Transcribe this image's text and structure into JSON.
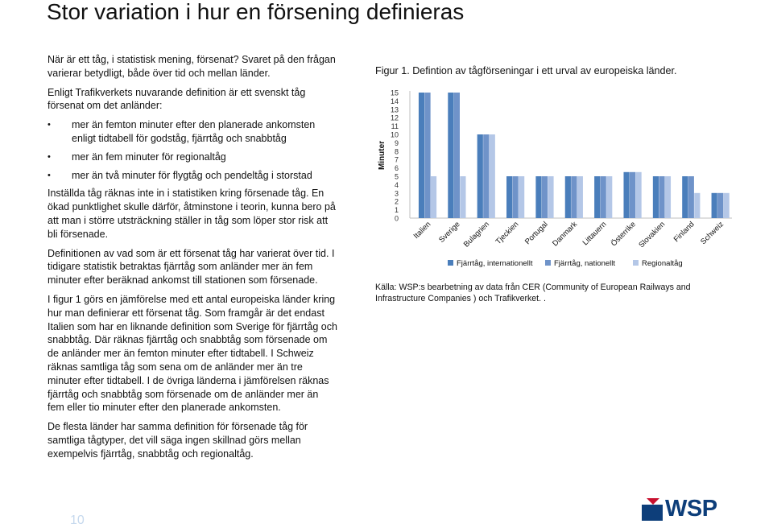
{
  "page": {
    "title": "Stor variation i hur en försening definieras",
    "page_number": "10"
  },
  "text": {
    "p1": "När är ett tåg, i statistisk mening, försenat? Svaret på den frågan varierar betydligt, både över tid och mellan länder.",
    "p2": "Enligt Trafikverkets nuvarande definition är ett svenskt tåg försenat om det anländer:",
    "bullets": [
      "mer än femton minuter efter den planerade ankomsten enligt tidtabell för godståg, fjärrtåg och snabbtåg",
      "mer än fem minuter för regionaltåg",
      "mer än två minuter för flygtåg och pendeltåg i storstad"
    ],
    "p3": "Inställda tåg räknas inte in i statistiken kring försenade tåg. En ökad punktlighet skulle därför, åtminstone i teorin, kunna bero på att man i större utsträckning ställer in tåg som löper stor risk att bli försenade.",
    "p4": "Definitionen av vad som är ett försenat tåg har varierat över tid. I tidigare statistik betraktas fjärrtåg som anländer mer än fem minuter efter beräknad ankomst till stationen som försenade.",
    "p5": "I figur 1 görs en jämförelse med ett antal europeiska länder kring hur man definierar ett försenat tåg. Som framgår är det endast Italien som har en liknande definition som Sverige för fjärrtåg och snabbtåg. Där räknas fjärrtåg och snabbtåg som försenade om de anländer mer än femton minuter efter tidtabell. I Schweiz räknas samtliga tåg som sena om de anländer mer än tre minuter efter tidtabell. I de övriga länderna i jämförelsen räknas fjärrtåg och snabbtåg som försenade om de anländer mer än fem eller tio minuter efter den planerade ankomsten.",
    "p6": "De flesta länder har samma definition för försenade tåg för samtliga tågtyper, det vill säga ingen skillnad görs mellan exempelvis fjärrtåg, snabbtåg och regionaltåg."
  },
  "figure": {
    "caption": "Figur 1. Defintion av tågförseningar i ett urval av europeiska länder.",
    "source": "Källa: WSP:s  bearbetning av data från CER (Community of European Railways and Infrastructure Companies ) och Trafikverket. ."
  },
  "chart_data": {
    "type": "bar",
    "ylabel": "Minuter",
    "ylim": [
      0,
      15
    ],
    "yticks": [
      "0",
      "1",
      "2",
      "3",
      "4",
      "5",
      "6",
      "7",
      "8",
      "9",
      "10",
      "11",
      "12",
      "13",
      "14",
      "15"
    ],
    "categories": [
      "Italien",
      "Sverige",
      "Bulagrien",
      "Tjeckien",
      "Portugal",
      "Danmark",
      "Littauern",
      "Österrike",
      "Slovakien",
      "Finland",
      "Schweiz"
    ],
    "series": [
      {
        "name": "Fjärrtåg, internationellt",
        "color": "#4a7ebb",
        "values": [
          15,
          15,
          10,
          5,
          5,
          5,
          5,
          5.5,
          5,
          5,
          3
        ]
      },
      {
        "name": "Fjärrtåg, nationellt",
        "color": "#6f93c9",
        "values": [
          15,
          15,
          10,
          5,
          5,
          5,
          5,
          5.5,
          5,
          5,
          3
        ]
      },
      {
        "name": "Regionaltåg",
        "color": "#b4c7e7",
        "values": [
          5,
          5,
          10,
          5,
          5,
          5,
          5,
          5.5,
          5,
          3,
          3
        ]
      }
    ],
    "legend_position": "bottom",
    "grid": false
  },
  "logo": {
    "text": "WSP",
    "color": "#0d3e7a",
    "accent": "#c8102e"
  }
}
